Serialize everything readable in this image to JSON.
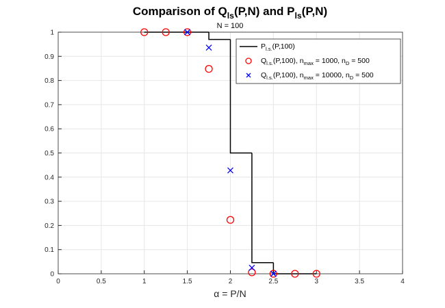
{
  "chart_data": {
    "type": "line",
    "title": [
      "Comparison of Q",
      "ls",
      "(P,N) and P",
      "ls",
      "(P,N)"
    ],
    "subtitle": "N = 100",
    "x_label": "α = P/N",
    "xlim": [
      0,
      4
    ],
    "xticks": [
      0,
      0.5,
      1,
      1.5,
      2,
      2.5,
      3,
      3.5,
      4
    ],
    "ylim": [
      0,
      1
    ],
    "yticks": [
      0,
      0.1,
      0.2,
      0.3,
      0.4,
      0.5,
      0.6,
      0.7,
      0.8,
      0.9,
      1
    ],
    "grid": true,
    "legend_position": "upper-right",
    "series": [
      {
        "name": [
          "P",
          "l.s.",
          "(P,100)"
        ],
        "style": "stairs",
        "color": "#000000",
        "x": [
          1,
          1.25,
          1.5,
          1.75,
          2,
          2.25,
          2.5,
          2.75,
          3
        ],
        "values": [
          1,
          1,
          1,
          0.97,
          0.5,
          0.046,
          0,
          0,
          0
        ]
      },
      {
        "name": [
          "Q",
          "l.s.",
          "(P,100), n",
          "max",
          " = 1000, n",
          "D",
          " = 500"
        ],
        "style": "circle",
        "color": "#ff0000",
        "x": [
          1,
          1.25,
          1.5,
          1.75,
          2,
          2.25,
          2.5,
          2.75,
          3
        ],
        "values": [
          1,
          1,
          1,
          0.848,
          0.223,
          0.006,
          0,
          0,
          0
        ]
      },
      {
        "name": [
          "Q",
          "l.s.",
          "(P,100), n",
          "max",
          " = 10000, n",
          "D",
          " = 500"
        ],
        "style": "cross",
        "color": "#0000ff",
        "x": [
          1.5,
          1.75,
          2,
          2.25,
          2.5
        ],
        "values": [
          1,
          0.936,
          0.428,
          0.025,
          0
        ]
      }
    ]
  }
}
